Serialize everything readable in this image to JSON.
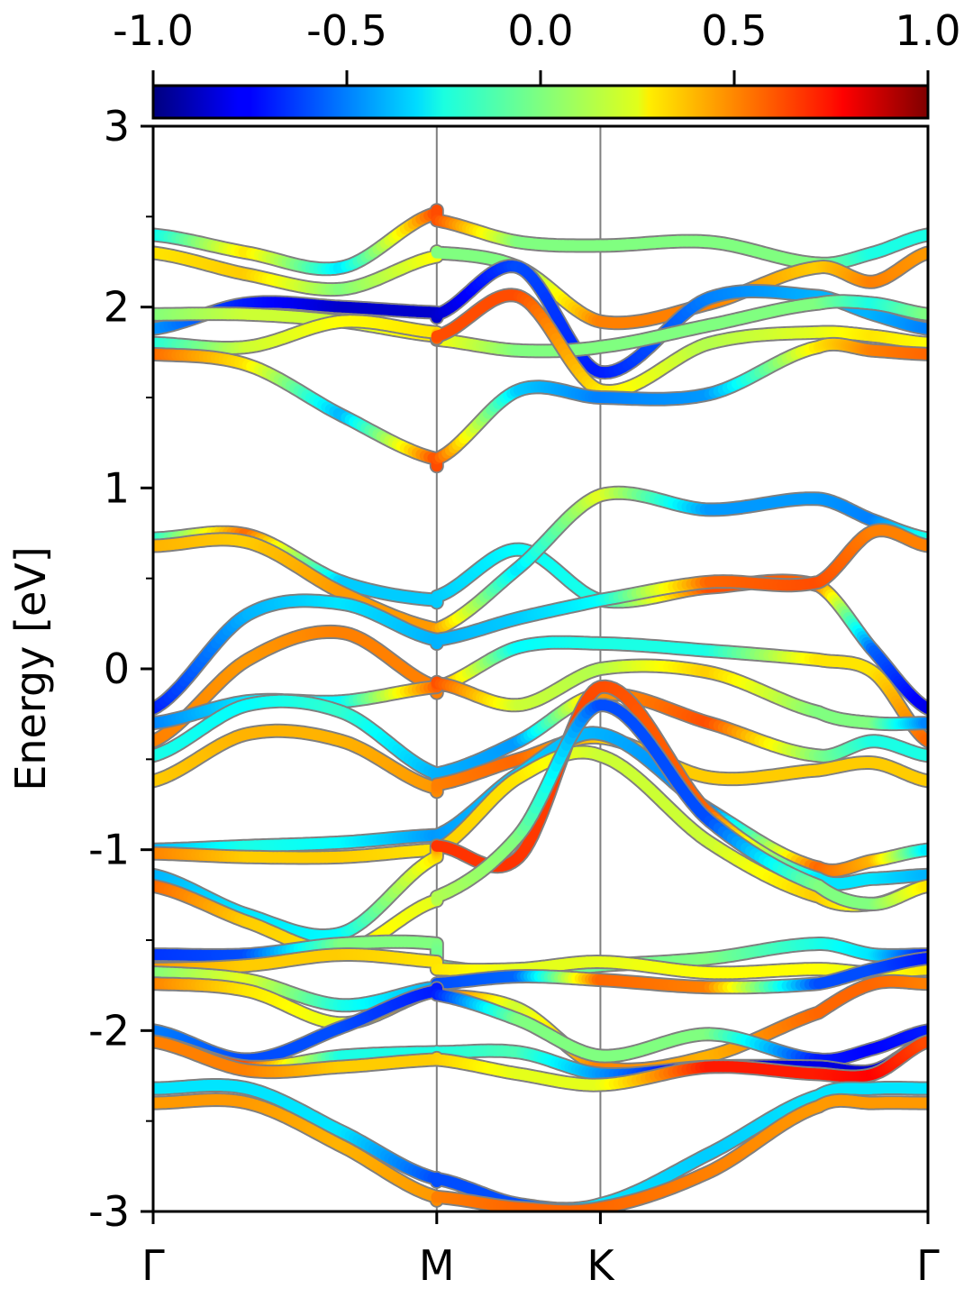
{
  "chart_data": {
    "type": "line",
    "title": "",
    "ylabel": "Energy [eV]",
    "xlabel": "",
    "x_ticks": [
      {
        "label": "Γ",
        "pos": 0
      },
      {
        "label": "M",
        "pos": 1
      },
      {
        "label": "K",
        "pos": 1.577
      },
      {
        "label": "Γ",
        "pos": 2.732
      }
    ],
    "xlim": [
      0,
      2.732
    ],
    "ylim": [
      -3,
      3
    ],
    "y_ticks": [
      3,
      2,
      1,
      0,
      -1,
      -2,
      -3
    ],
    "y_tick_labels": [
      "3",
      "2",
      "1",
      "0",
      "-1",
      "-2",
      "-3"
    ],
    "colorbar": {
      "colormap": "jet",
      "range": [
        -1.0,
        1.0
      ],
      "ticks": [
        -1.0,
        -0.5,
        0.0,
        0.5,
        1.0
      ],
      "tick_labels": [
        "-1.0",
        "-0.5",
        "0.0",
        "0.5",
        "1.0"
      ],
      "placement": "top"
    },
    "vertical_lines_at": [
      1,
      1.577
    ],
    "series": [
      {
        "y": [
          2.4,
          2.3,
          2.22,
          2.52,
          2.48,
          2.36,
          2.34,
          2.36,
          2.24,
          2.3,
          2.4
        ],
        "c": [
          -0.25,
          0.3,
          -0.3,
          0.6,
          0.6,
          0.0,
          0.0,
          0.0,
          0.0,
          -0.2,
          -0.2
        ]
      },
      {
        "y": [
          2.3,
          2.18,
          2.1,
          2.28,
          2.3,
          2.22,
          1.92,
          2.02,
          2.22,
          2.14,
          2.3
        ],
        "c": [
          0.3,
          0.35,
          0.0,
          0.25,
          0.0,
          0.0,
          0.5,
          0.5,
          0.35,
          0.5,
          0.45
        ]
      },
      {
        "y": [
          1.88,
          2.02,
          2.0,
          1.97,
          1.96,
          2.22,
          1.64,
          2.05,
          2.06,
          1.96,
          1.88
        ],
        "c": [
          -0.45,
          -0.7,
          -0.85,
          -0.85,
          -0.85,
          -0.6,
          -0.7,
          -0.5,
          -0.4,
          -0.4,
          -0.5
        ]
      },
      {
        "y": [
          1.96,
          1.96,
          1.92,
          1.84,
          1.82,
          1.76,
          1.78,
          1.9,
          2.02,
          2.02,
          1.96
        ],
        "c": [
          0.0,
          0.15,
          0.15,
          0.3,
          0.25,
          0.0,
          0.0,
          0.0,
          0.0,
          -0.2,
          0.0
        ]
      },
      {
        "y": [
          1.8,
          1.78,
          1.92,
          1.86,
          1.84,
          2.06,
          1.54,
          1.8,
          1.86,
          1.84,
          1.8
        ],
        "c": [
          -0.2,
          0.15,
          0.25,
          0.3,
          0.6,
          0.6,
          0.3,
          0.1,
          0.2,
          0.3,
          0.25
        ]
      },
      {
        "y": [
          1.74,
          1.68,
          1.4,
          1.16,
          1.16,
          1.54,
          1.5,
          1.52,
          1.78,
          1.76,
          1.74
        ],
        "c": [
          0.55,
          0.3,
          -0.4,
          0.6,
          0.6,
          -0.35,
          -0.5,
          -0.45,
          0.3,
          0.5,
          0.55
        ]
      },
      {
        "y": [
          0.72,
          0.74,
          0.48,
          0.38,
          0.4,
          0.66,
          0.38,
          0.45,
          0.46,
          0.1,
          -0.22
        ],
        "c": [
          -0.2,
          0.55,
          -0.35,
          -0.35,
          -0.35,
          -0.25,
          -0.2,
          0.6,
          0.55,
          -0.55,
          -0.8
        ]
      },
      {
        "y": [
          0.68,
          0.7,
          0.42,
          0.22,
          0.22,
          0.56,
          0.96,
          0.88,
          0.94,
          0.82,
          0.72
        ],
        "c": [
          0.4,
          0.35,
          0.45,
          0.45,
          0.45,
          -0.3,
          0.2,
          -0.45,
          -0.45,
          -0.5,
          -0.2
        ]
      },
      {
        "y": [
          -0.22,
          0.3,
          0.36,
          0.16,
          0.16,
          0.28,
          0.38,
          0.48,
          0.48,
          0.76,
          0.68
        ],
        "c": [
          -0.7,
          -0.4,
          -0.3,
          -0.4,
          -0.4,
          -0.35,
          -0.25,
          0.55,
          0.6,
          0.5,
          0.5
        ]
      },
      {
        "y": [
          -0.4,
          0.05,
          0.2,
          -0.1,
          -0.1,
          0.12,
          0.14,
          0.1,
          0.05,
          -0.02,
          -0.4
        ],
        "c": [
          0.5,
          0.45,
          0.5,
          0.5,
          0.5,
          -0.25,
          -0.2,
          -0.2,
          0.3,
          0.3,
          0.55
        ]
      },
      {
        "y": [
          -0.3,
          -0.18,
          -0.18,
          -0.1,
          -0.08,
          -0.2,
          0.0,
          -0.02,
          -0.24,
          -0.3,
          -0.3
        ],
        "c": [
          -0.5,
          -0.3,
          -0.25,
          0.55,
          0.6,
          0.15,
          0.1,
          0.35,
          0.0,
          0.0,
          -0.5
        ]
      },
      {
        "y": [
          -0.48,
          -0.2,
          -0.24,
          -0.58,
          -0.58,
          -0.4,
          -0.14,
          -0.3,
          -0.48,
          -0.4,
          -0.48
        ],
        "c": [
          -0.2,
          -0.25,
          -0.15,
          -0.4,
          -0.4,
          -0.45,
          0.45,
          0.6,
          0.0,
          -0.2,
          -0.2
        ]
      },
      {
        "y": [
          -0.62,
          -0.36,
          -0.4,
          -0.66,
          -0.64,
          -0.5,
          -0.38,
          -0.6,
          -0.56,
          -0.52,
          -0.62
        ],
        "c": [
          0.35,
          0.4,
          0.4,
          0.45,
          0.5,
          0.55,
          0.35,
          0.35,
          0.35,
          0.35,
          0.35
        ]
      },
      {
        "y": [
          -1.0,
          -0.98,
          -0.96,
          -0.92,
          -0.92,
          -0.58,
          -0.36,
          -0.78,
          -1.1,
          -1.06,
          -1.0
        ],
        "c": [
          -0.4,
          -0.2,
          -0.25,
          -0.45,
          -0.45,
          -0.35,
          -0.4,
          -0.5,
          0.55,
          0.4,
          -0.3
        ]
      },
      {
        "y": [
          -1.02,
          -1.04,
          -1.04,
          -1.0,
          -1.0,
          -0.6,
          -0.48,
          -0.96,
          -1.26,
          -1.3,
          -1.2
        ],
        "c": [
          0.5,
          0.35,
          0.35,
          0.3,
          0.35,
          0.3,
          0.15,
          0.15,
          0.35,
          0.2,
          0.45
        ]
      },
      {
        "y": [
          -1.14,
          -1.36,
          -1.46,
          -1.04,
          -0.98,
          -1.04,
          -0.1,
          -0.8,
          -1.16,
          -1.16,
          -1.14
        ],
        "c": [
          -0.4,
          -0.3,
          -0.25,
          0.3,
          0.65,
          0.65,
          0.6,
          0.55,
          -0.3,
          -0.3,
          -0.4
        ]
      },
      {
        "y": [
          -1.2,
          -1.4,
          -1.56,
          -1.28,
          -1.26,
          -0.92,
          -0.2,
          -0.84,
          -1.2,
          -1.3,
          -1.2
        ],
        "c": [
          0.55,
          0.35,
          0.3,
          0.2,
          0.1,
          0.0,
          -0.6,
          -0.6,
          0.0,
          0.0,
          0.3
        ]
      },
      {
        "y": [
          -1.58,
          -1.58,
          -1.52,
          -1.52,
          -1.64,
          -1.68,
          -1.64,
          -1.6,
          -1.52,
          -1.58,
          -1.58
        ],
        "c": [
          -0.65,
          -0.6,
          0.0,
          0.0,
          -0.05,
          0.0,
          -0.05,
          0.0,
          -0.2,
          -0.3,
          -0.7
        ]
      },
      {
        "y": [
          -1.66,
          -1.64,
          -1.58,
          -1.62,
          -1.66,
          -1.66,
          -1.62,
          -1.68,
          -1.66,
          -1.68,
          -1.66
        ],
        "c": [
          0.45,
          0.35,
          0.35,
          0.3,
          0.3,
          0.2,
          0.2,
          0.25,
          0.25,
          0.2,
          0.3
        ]
      },
      {
        "y": [
          -1.68,
          -1.72,
          -1.86,
          -1.76,
          -1.74,
          -1.7,
          -1.72,
          -1.76,
          -1.74,
          -1.66,
          -1.6
        ],
        "c": [
          0.0,
          0.2,
          -0.2,
          -0.4,
          -0.6,
          -0.55,
          0.55,
          0.5,
          -0.6,
          -0.6,
          -0.7
        ]
      },
      {
        "y": [
          -1.74,
          -1.78,
          -1.96,
          -1.78,
          -1.8,
          -1.88,
          -2.2,
          -2.14,
          -1.9,
          -1.74,
          -1.74
        ],
        "c": [
          0.5,
          0.3,
          0.2,
          0.6,
          0.6,
          0.15,
          0.5,
          0.4,
          0.55,
          0.55,
          0.5
        ]
      },
      {
        "y": [
          -2.0,
          -2.16,
          -1.98,
          -1.78,
          -1.8,
          -1.94,
          -2.14,
          -2.02,
          -2.16,
          -2.1,
          -2.0
        ],
        "c": [
          -0.5,
          -0.6,
          -0.6,
          -0.7,
          -0.7,
          0.0,
          0.0,
          0.0,
          -0.7,
          -0.75,
          -0.7
        ]
      },
      {
        "y": [
          -2.06,
          -2.2,
          -2.14,
          -2.12,
          -2.12,
          -2.12,
          -2.24,
          -2.2,
          -2.2,
          -2.22,
          -2.06
        ],
        "c": [
          0.55,
          0.6,
          -0.2,
          -0.2,
          -0.2,
          -0.1,
          -0.45,
          -0.85,
          -0.8,
          -0.85,
          -0.6
        ]
      },
      {
        "y": [
          -2.06,
          -2.22,
          -2.2,
          -2.16,
          -2.16,
          -2.24,
          -2.3,
          -2.2,
          -2.24,
          -2.24,
          -2.06
        ],
        "c": [
          0.5,
          0.5,
          0.35,
          0.35,
          0.35,
          0.2,
          0.2,
          0.7,
          0.7,
          0.75,
          0.6
        ]
      },
      {
        "y": [
          -2.32,
          -2.32,
          -2.56,
          -2.82,
          -2.82,
          -2.96,
          -2.96,
          -2.68,
          -2.36,
          -2.32,
          -2.32
        ],
        "c": [
          -0.3,
          -0.3,
          -0.3,
          -0.6,
          -0.6,
          -0.6,
          -0.3,
          -0.35,
          -0.3,
          -0.3,
          -0.3
        ]
      },
      {
        "y": [
          -2.4,
          -2.4,
          -2.64,
          -2.92,
          -2.92,
          -2.98,
          -2.98,
          -2.78,
          -2.42,
          -2.4,
          -2.4
        ],
        "c": [
          0.45,
          0.45,
          0.4,
          0.45,
          0.5,
          0.55,
          0.55,
          0.5,
          0.45,
          0.45,
          0.45
        ]
      }
    ]
  }
}
